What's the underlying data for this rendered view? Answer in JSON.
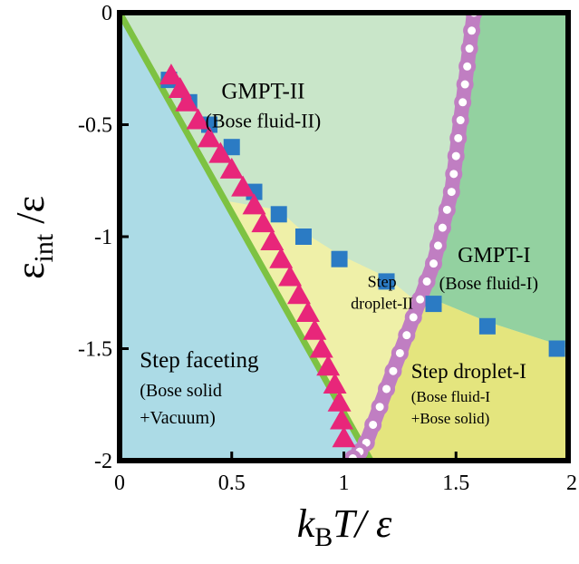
{
  "chart_data": {
    "type": "scatter",
    "title": "",
    "xlim": [
      0,
      2
    ],
    "ylim": [
      -2,
      0
    ],
    "x_ticks": [
      "0",
      "0.5",
      "1",
      "1.5",
      "2"
    ],
    "y_ticks": [
      "0",
      "-0.5",
      "-1",
      "-1.5",
      "-2"
    ],
    "x_tick_values": [
      0,
      0.5,
      1,
      1.5,
      2
    ],
    "y_tick_values": [
      0,
      -0.5,
      -1,
      -1.5,
      -2
    ],
    "xlabel": {
      "main": "k",
      "sub": "B",
      "rest": "T/ ε"
    },
    "ylabel": {
      "main": "ε",
      "sub": "int",
      "rest": " /ε"
    },
    "grid": false,
    "regions": [
      {
        "name": "GMPT-II",
        "line1": "GMPT-II",
        "line2": "(Bose fluid-II)",
        "color": "#c9e6c9",
        "label_x": 0.64,
        "label_y": -0.35
      },
      {
        "name": "GMPT-I",
        "line1": "GMPT-I",
        "line2": "(Bose fluid-I)",
        "color": "#93d1a0",
        "label_x": 1.67,
        "label_y": -1.08
      },
      {
        "name": "Step droplet-II",
        "line1": "Step",
        "line2": "droplet-II",
        "color": "#eff0a8",
        "label_x": 1.17,
        "label_y": -1.2
      },
      {
        "name": "Step droplet-I",
        "line1": "Step droplet-I",
        "line2": "(Bose fluid-I",
        "line3": "+Bose solid)",
        "color": "#e4e57e",
        "label_x": 1.3,
        "label_y": -1.6
      },
      {
        "name": "Step faceting",
        "line1": "Step faceting",
        "line2": "(Bose solid",
        "line3": "+Vacuum)",
        "color": "#acdbe6",
        "label_x": 0.09,
        "label_y": -1.55
      }
    ],
    "region_colors": {
      "bose_fluid_II": "#c9e6c9",
      "bose_fluid_I": "#93d1a0",
      "droplet_II": "#eff0a8",
      "droplet_I": "#e4e57e",
      "faceting": "#acdbe6"
    },
    "series": [
      {
        "marker": "triangle",
        "color": "#e8267a",
        "x": [
          0.23,
          0.27,
          0.3,
          0.35,
          0.4,
          0.45,
          0.5,
          0.55,
          0.6,
          0.64,
          0.68,
          0.72,
          0.76,
          0.8,
          0.84,
          0.87,
          0.9,
          0.93,
          0.96,
          0.98,
          0.99,
          1.0
        ],
        "y": [
          -0.28,
          -0.34,
          -0.4,
          -0.48,
          -0.56,
          -0.63,
          -0.7,
          -0.78,
          -0.86,
          -0.94,
          -1.02,
          -1.1,
          -1.18,
          -1.26,
          -1.34,
          -1.42,
          -1.5,
          -1.58,
          -1.66,
          -1.74,
          -1.82,
          -1.9
        ]
      },
      {
        "marker": "square",
        "color": "#2b7bc4",
        "x": [
          0.22,
          0.31,
          0.4,
          0.5,
          0.6,
          0.71,
          0.82,
          0.98,
          1.19,
          1.4,
          1.64,
          1.95
        ],
        "y": [
          -0.3,
          -0.4,
          -0.5,
          -0.6,
          -0.8,
          -0.9,
          -1.0,
          -1.1,
          -1.2,
          -1.3,
          -1.4,
          -1.5
        ]
      },
      {
        "marker": "ring-line",
        "color": "#c07ec2",
        "x": [
          1.58,
          1.57,
          1.56,
          1.55,
          1.54,
          1.53,
          1.52,
          1.51,
          1.5,
          1.49,
          1.48,
          1.46,
          1.44,
          1.42,
          1.4,
          1.37,
          1.34,
          1.31,
          1.28,
          1.25,
          1.22,
          1.19,
          1.16,
          1.13,
          1.1,
          1.07,
          1.04
        ],
        "y": [
          0.0,
          -0.08,
          -0.16,
          -0.24,
          -0.32,
          -0.4,
          -0.48,
          -0.56,
          -0.64,
          -0.72,
          -0.8,
          -0.88,
          -0.96,
          -1.04,
          -1.12,
          -1.2,
          -1.28,
          -1.36,
          -1.44,
          -1.52,
          -1.6,
          -1.68,
          -1.76,
          -1.84,
          -1.92,
          -1.96,
          -1.99
        ]
      },
      {
        "marker": "line",
        "color": "#7dc242",
        "x": [
          0.0,
          1.12
        ],
        "y": [
          0.0,
          -2.0
        ]
      }
    ]
  }
}
